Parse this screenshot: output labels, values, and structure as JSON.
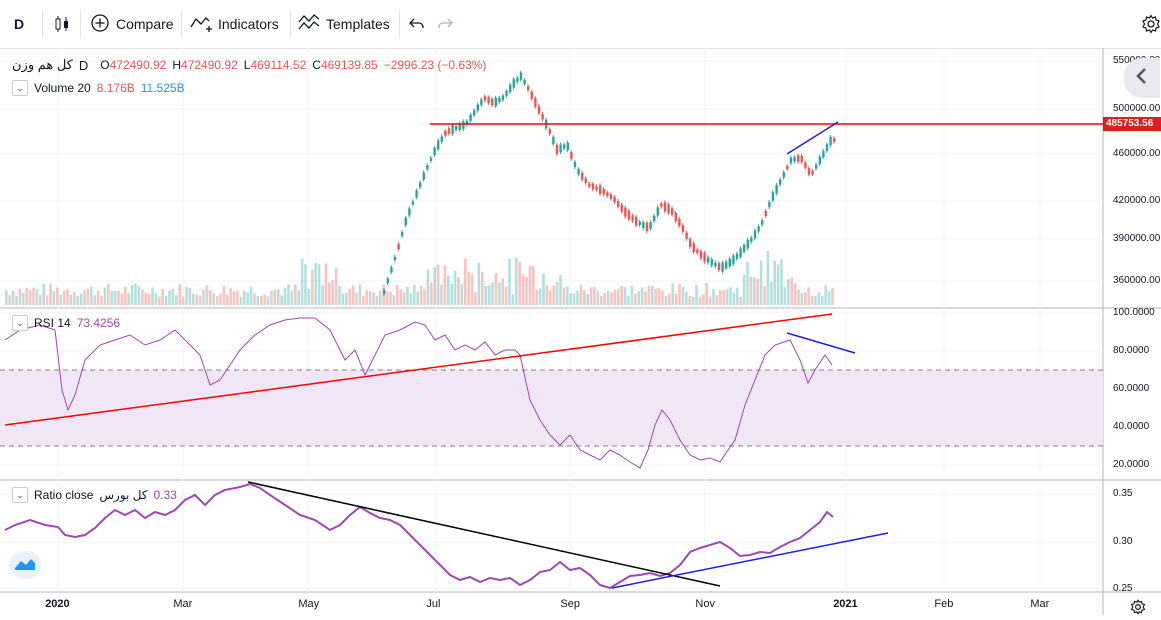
{
  "toolbar": {
    "interval": "D",
    "compare": "Compare",
    "indicators": "Indicators",
    "templates": "Templates"
  },
  "main_legend": {
    "symbol": "کل هم وزن",
    "interval": "D",
    "o_label": "O",
    "o_value": "472490.92",
    "h_label": "H",
    "h_value": "472490.92",
    "l_label": "L",
    "l_value": "469114.52",
    "c_label": "C",
    "c_value": "469139.85",
    "change": "−2996.23 (−0.63%)"
  },
  "volume_legend": {
    "name": "Volume 20",
    "v1": "8.176B",
    "v2": "11.525B"
  },
  "rsi_legend": {
    "name": "RSI 14",
    "value": "73.4256"
  },
  "ratio_legend": {
    "name": "Ratio close",
    "symbol": "کل بورس",
    "value": "0.33"
  },
  "price_axis": [
    "550000.00",
    "500000.00",
    "460000.00",
    "420000.00",
    "390000.00",
    "360000.00"
  ],
  "price_tag": "485753.56",
  "rsi_axis": [
    "100.0000",
    "80.0000",
    "60.0000",
    "40.0000",
    "20.0000"
  ],
  "ratio_axis": [
    "0.35",
    "0.30",
    "0.25"
  ],
  "time_axis": [
    "2020",
    "Mar",
    "May",
    "Jul",
    "Sep",
    "Nov",
    "2021",
    "Feb",
    "Mar"
  ],
  "colors": {
    "up": "#26a69a",
    "down": "#ef5350",
    "red_line": "#ff0000",
    "blue_line": "#1e1ee6",
    "rsi": "#9b49b3",
    "ratio": "#9b49b3",
    "rsi_band": "#f1e6f5"
  }
}
